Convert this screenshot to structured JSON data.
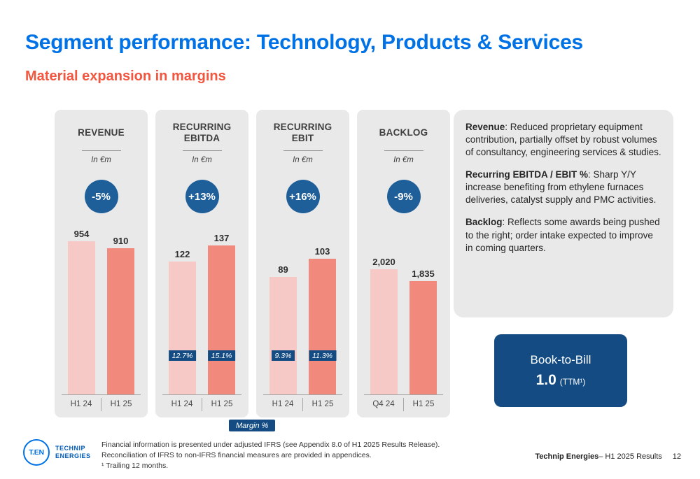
{
  "slide": {
    "title": "Segment performance: Technology, Products & Services",
    "subtitle": "Material expansion in margins"
  },
  "colors": {
    "brand_blue": "#0072E6",
    "coral": "#F2563F",
    "navy": "#134B82",
    "circle_blue": "#1E5E99",
    "panel_gray": "#E9E9EA",
    "bar_prev": "#F6C9C7",
    "bar_curr": "#F18A7C"
  },
  "chart_data": [
    {
      "type": "bar",
      "title": "REVENUE",
      "unit": "In €m",
      "delta": "-5%",
      "categories": [
        "H1 24",
        "H1 25"
      ],
      "values": [
        954,
        910
      ],
      "value_labels": [
        "954",
        "910"
      ],
      "ylim": [
        0,
        1000
      ],
      "grid": false,
      "legend": "none"
    },
    {
      "type": "bar",
      "title": "RECURRING EBITDA",
      "unit": "In €m",
      "delta": "+13%",
      "categories": [
        "H1 24",
        "H1 25"
      ],
      "values": [
        122,
        137
      ],
      "value_labels": [
        "122",
        "137"
      ],
      "margin_labels": [
        "12.7%",
        "15.1%"
      ],
      "ylim": [
        0,
        148
      ],
      "grid": false,
      "legend": "none"
    },
    {
      "type": "bar",
      "title": "RECURRING EBIT",
      "unit": "In €m",
      "delta": "+16%",
      "categories": [
        "H1 24",
        "H1 25"
      ],
      "values": [
        89,
        103
      ],
      "value_labels": [
        "89",
        "103"
      ],
      "margin_labels": [
        "9.3%",
        "11.3%"
      ],
      "ylim": [
        0,
        122
      ],
      "grid": false,
      "legend": "none"
    },
    {
      "type": "bar",
      "title": "BACKLOG",
      "unit": "In €m",
      "delta": "-9%",
      "categories": [
        "Q4 24",
        "H1 25"
      ],
      "values": [
        2020,
        1835
      ],
      "value_labels": [
        "2,020",
        "1,835"
      ],
      "ylim": [
        0,
        2600
      ],
      "grid": false,
      "legend": "none"
    }
  ],
  "margin_legend": "Margin %",
  "commentary": [
    {
      "lead": "Revenue",
      "text": ": Reduced proprietary equipment contribution, partially offset by robust volumes of consultancy, engineering services & studies."
    },
    {
      "lead": "Recurring EBITDA / EBIT %",
      "text": ": Sharp Y/Y increase benefiting from ethylene furnaces deliveries, catalyst supply and PMC activities."
    },
    {
      "lead": "Backlog",
      "text": ": Reflects some awards being pushed to the right; order intake expected to improve in coming quarters."
    }
  ],
  "book_to_bill": {
    "label": "Book-to-Bill",
    "value": "1.0",
    "suffix": "(TTM¹)"
  },
  "footer": {
    "logo_mark": "T.EN",
    "logo_name_line1": "TECHNIP",
    "logo_name_line2": "ENERGIES",
    "notes": [
      "Financial information is presented under adjusted IFRS (see Appendix 8.0 of H1 2025 Results Release).",
      "Reconciliation of IFRS to non-IFRS financial measures are provided in appendices.",
      "¹ Trailing 12 months."
    ],
    "credit_bold": "Technip Energies",
    "credit_rest": " – H1 2025 Results",
    "page": "12"
  }
}
